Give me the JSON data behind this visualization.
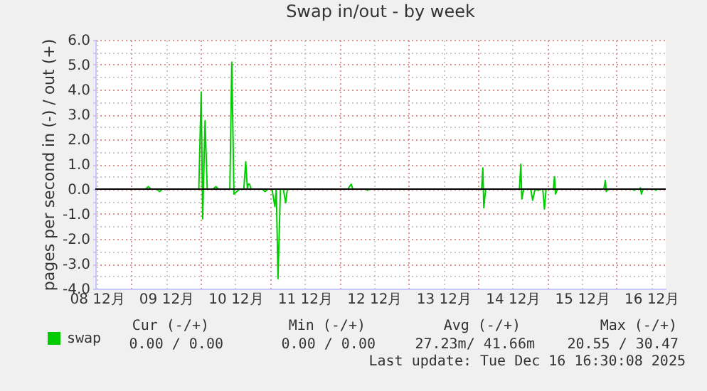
{
  "chart_data": {
    "type": "line",
    "title": "Swap in/out - by week",
    "ylabel": "pages per second in (-) / out (+)",
    "x": [
      "2025-12-08T14:15",
      "2025-12-09T04:50",
      "2025-12-09T05:50",
      "2025-12-09T06:50",
      "2025-12-09T08:45",
      "2025-12-09T09:45",
      "2025-12-09T10:45",
      "2025-12-09T23:20",
      "2025-12-10T00:10",
      "2025-12-10T00:40",
      "2025-12-10T01:30",
      "2025-12-10T02:15",
      "2025-12-10T04:15",
      "2025-12-10T05:15",
      "2025-12-10T06:10",
      "2025-12-10T10:05",
      "2025-12-10T10:45",
      "2025-12-10T11:30",
      "2025-12-10T12:30",
      "2025-12-10T13:30",
      "2025-12-10T14:55",
      "2025-12-10T15:35",
      "2025-12-10T16:10",
      "2025-12-10T16:25",
      "2025-12-10T16:55",
      "2025-12-10T17:25",
      "2025-12-10T21:15",
      "2025-12-10T22:15",
      "2025-12-10T23:15",
      "2025-12-11T00:40",
      "2025-12-11T01:40",
      "2025-12-11T02:10",
      "2025-12-11T02:45",
      "2025-12-11T03:35",
      "2025-12-11T04:35",
      "2025-12-11T05:25",
      "2025-12-11T06:00",
      "2025-12-12T02:55",
      "2025-12-12T04:05",
      "2025-12-12T04:40",
      "2025-12-12T09:20",
      "2025-12-12T09:45",
      "2025-12-12T10:15",
      "2025-12-14T01:15",
      "2025-12-14T01:40",
      "2025-12-14T02:00",
      "2025-12-14T02:40",
      "2025-12-14T14:20",
      "2025-12-14T14:50",
      "2025-12-14T15:10",
      "2025-12-14T15:50",
      "2025-12-14T18:15",
      "2025-12-14T18:55",
      "2025-12-14T19:45",
      "2025-12-14T21:00",
      "2025-12-14T21:40",
      "2025-12-14T22:25",
      "2025-12-14T23:00",
      "2025-12-14T23:35",
      "2025-12-15T02:05",
      "2025-12-15T02:30",
      "2025-12-15T02:50",
      "2025-12-15T03:30",
      "2025-12-15T19:35",
      "2025-12-15T20:05",
      "2025-12-15T20:25",
      "2025-12-15T21:00",
      "2025-12-16T05:20",
      "2025-12-16T06:05",
      "2025-12-16T06:45",
      "2025-12-16T07:45",
      "2025-12-16T08:15",
      "2025-12-16T08:35",
      "2025-12-16T09:10",
      "2025-12-16T13:05",
      "2025-12-16T13:35",
      "2025-12-16T14:05",
      "2025-12-16T15:30"
    ],
    "series": [
      {
        "name": "swap",
        "color": "#00cc00",
        "values": [
          0,
          0,
          0.1,
          0,
          0,
          -0.1,
          0,
          0,
          3.9,
          -1.2,
          2.75,
          0,
          0,
          0.1,
          0,
          0,
          5.1,
          -0.2,
          -0.1,
          0,
          0,
          1.1,
          0,
          0.2,
          0.2,
          0,
          0,
          -0.1,
          0,
          0,
          -0.7,
          0,
          -3.6,
          0,
          0,
          -0.55,
          0,
          0,
          0.2,
          0,
          0,
          -0.05,
          0,
          0,
          0.85,
          -0.75,
          0,
          0,
          1.0,
          -0.4,
          0,
          0,
          -0.45,
          0,
          -0.05,
          0,
          0,
          -0.8,
          0,
          0,
          0.5,
          -0.2,
          0,
          0,
          0.35,
          -0.1,
          0,
          0,
          -0.05,
          0,
          0,
          0.05,
          -0.2,
          0,
          0,
          -0.05,
          0,
          0
        ]
      }
    ],
    "xlim": [
      "2025-12-08T11:30",
      "2025-12-16T17:00"
    ],
    "xticks": [
      {
        "value": "2025-12-08T12:00",
        "label": "08 12月"
      },
      {
        "value": "2025-12-09T00:00",
        "label": null
      },
      {
        "value": "2025-12-09T12:00",
        "label": "09 12月"
      },
      {
        "value": "2025-12-10T00:00",
        "label": null
      },
      {
        "value": "2025-12-10T12:00",
        "label": "10 12月"
      },
      {
        "value": "2025-12-11T00:00",
        "label": null
      },
      {
        "value": "2025-12-11T12:00",
        "label": "11 12月"
      },
      {
        "value": "2025-12-12T00:00",
        "label": null
      },
      {
        "value": "2025-12-12T12:00",
        "label": "12 12月"
      },
      {
        "value": "2025-12-13T00:00",
        "label": null
      },
      {
        "value": "2025-12-13T12:00",
        "label": "13 12月"
      },
      {
        "value": "2025-12-14T00:00",
        "label": null
      },
      {
        "value": "2025-12-14T12:00",
        "label": "14 12月"
      },
      {
        "value": "2025-12-15T00:00",
        "label": null
      },
      {
        "value": "2025-12-15T12:00",
        "label": "15 12月"
      },
      {
        "value": "2025-12-16T00:00",
        "label": null
      },
      {
        "value": "2025-12-16T12:00",
        "label": "16 12月"
      }
    ],
    "ylim": [
      -4,
      6
    ],
    "yticks": [
      {
        "value": -4,
        "label": "-4.0"
      },
      {
        "value": -3.5,
        "label": null
      },
      {
        "value": -3,
        "label": "-3.0"
      },
      {
        "value": -2.5,
        "label": null
      },
      {
        "value": -2,
        "label": "-2.0"
      },
      {
        "value": -1.5,
        "label": null
      },
      {
        "value": -1,
        "label": "-1.0"
      },
      {
        "value": -0.5,
        "label": null
      },
      {
        "value": 0,
        "label": "0.0"
      },
      {
        "value": 0.5,
        "label": null
      },
      {
        "value": 1,
        "label": "1.0"
      },
      {
        "value": 1.5,
        "label": null
      },
      {
        "value": 2,
        "label": "2.0"
      },
      {
        "value": 2.5,
        "label": null
      },
      {
        "value": 3,
        "label": "3.0"
      },
      {
        "value": 3.5,
        "label": null
      },
      {
        "value": 4,
        "label": "4.0"
      },
      {
        "value": 4.5,
        "label": null
      },
      {
        "value": 5,
        "label": "5.0"
      },
      {
        "value": 5.5,
        "label": null
      },
      {
        "value": 6,
        "label": "6.0"
      }
    ],
    "grid": true,
    "ref_lines": [
      {
        "axis": "y",
        "value": 0,
        "color": "#000000"
      }
    ],
    "legend": "bottom",
    "annotations": [
      "Cur (-/+)",
      "Min (-/+)",
      "Avg (-/+)",
      "Max (-/+)",
      "0.00 /  0.00",
      "0.00 /  0.00",
      "27.23m/ 41.66m",
      "20.55 / 30.47",
      "Last update: Tue Dec 16 16:30:08 2025"
    ]
  }
}
